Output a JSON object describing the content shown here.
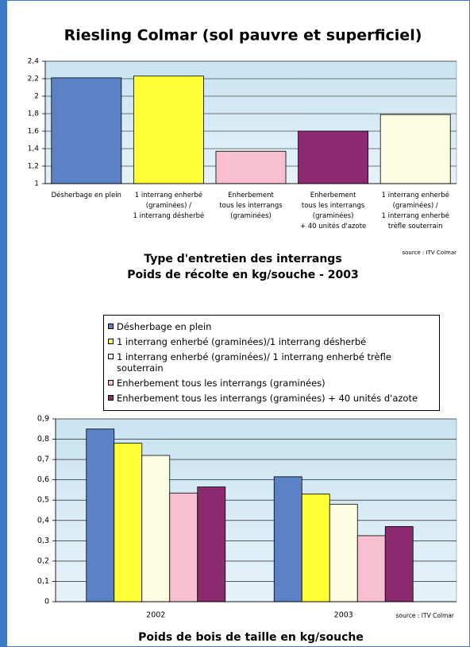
{
  "chart_data": [
    {
      "type": "bar",
      "title": "Riesling Colmar (sol pauvre et superficiel)",
      "categories": [
        [
          "Désherbage en plein"
        ],
        [
          "1 interrang enherbé",
          "(graminées) /",
          "1 interrang désherbé"
        ],
        [
          "Enherbement",
          "tous les interrangs",
          "(graminées)"
        ],
        [
          "Enherbement",
          "tous les interrangs",
          "(graminées)",
          "+ 40 unités d'azote"
        ],
        [
          "1 interrang enherbé",
          "(graminées) /",
          "1 interrang enherbé",
          "trèfle souterrain"
        ]
      ],
      "values": [
        2.21,
        2.23,
        1.37,
        1.6,
        1.79
      ],
      "colors": [
        "#5b82c6",
        "#ffff33",
        "#f7bfcf",
        "#8c2a70",
        "#fdfde2"
      ],
      "xlabel": [
        "Type d'entretien des interrangs",
        "Poids de récolte en kg/souche - 2003"
      ],
      "source": "source : ITV Colmar",
      "ylim": [
        1,
        2.4
      ],
      "yticks": [
        1,
        {
          "value": 1.2,
          "label": "1,2"
        },
        {
          "value": 1.4,
          "label": "1,4"
        },
        {
          "value": 1.6,
          "label": "1,6"
        },
        {
          "value": 1.8,
          "label": "1,8"
        },
        2,
        {
          "value": 2.2,
          "label": "2,2"
        },
        {
          "value": 2.4,
          "label": "2,4"
        }
      ],
      "grid": true
    },
    {
      "type": "bar",
      "categories": [
        "2002",
        "2003"
      ],
      "series": [
        {
          "name": "Désherbage en plein",
          "color": "#5b82c6",
          "values": [
            0.85,
            0.615
          ]
        },
        {
          "name": "1 interrang enherbé (graminées)/1 interrang désherbé",
          "color": "#ffff33",
          "values": [
            0.78,
            0.53
          ]
        },
        {
          "name": "1 interrang enherbé (graminées)/ 1 interrang enherbé trèfle souterrain",
          "color": "#fdfde2",
          "values": [
            0.72,
            0.48
          ]
        },
        {
          "name": "Enherbement tous les interrangs (graminées)",
          "color": "#f7bfcf",
          "values": [
            0.535,
            0.325
          ]
        },
        {
          "name": "Enherbement tous les interrangs (graminées) + 40 unités d'azote",
          "color": "#8c2a70",
          "values": [
            0.565,
            0.37
          ]
        }
      ],
      "xlabel": "Poids de bois de taille en kg/souche",
      "source": "source : ITV Colmar",
      "ylim": [
        0,
        0.9
      ],
      "yticks": [
        0,
        {
          "value": 0.1,
          "label": "0,1"
        },
        {
          "value": 0.2,
          "label": "0,2"
        },
        {
          "value": 0.3,
          "label": "0,3"
        },
        {
          "value": 0.4,
          "label": "0,4"
        },
        {
          "value": 0.5,
          "label": "0,5"
        },
        {
          "value": 0.6,
          "label": "0,6"
        },
        {
          "value": 0.7,
          "label": "0,7"
        },
        {
          "value": 0.8,
          "label": "0,8"
        },
        {
          "value": 0.9,
          "label": "0,9"
        }
      ],
      "grid": true
    }
  ]
}
